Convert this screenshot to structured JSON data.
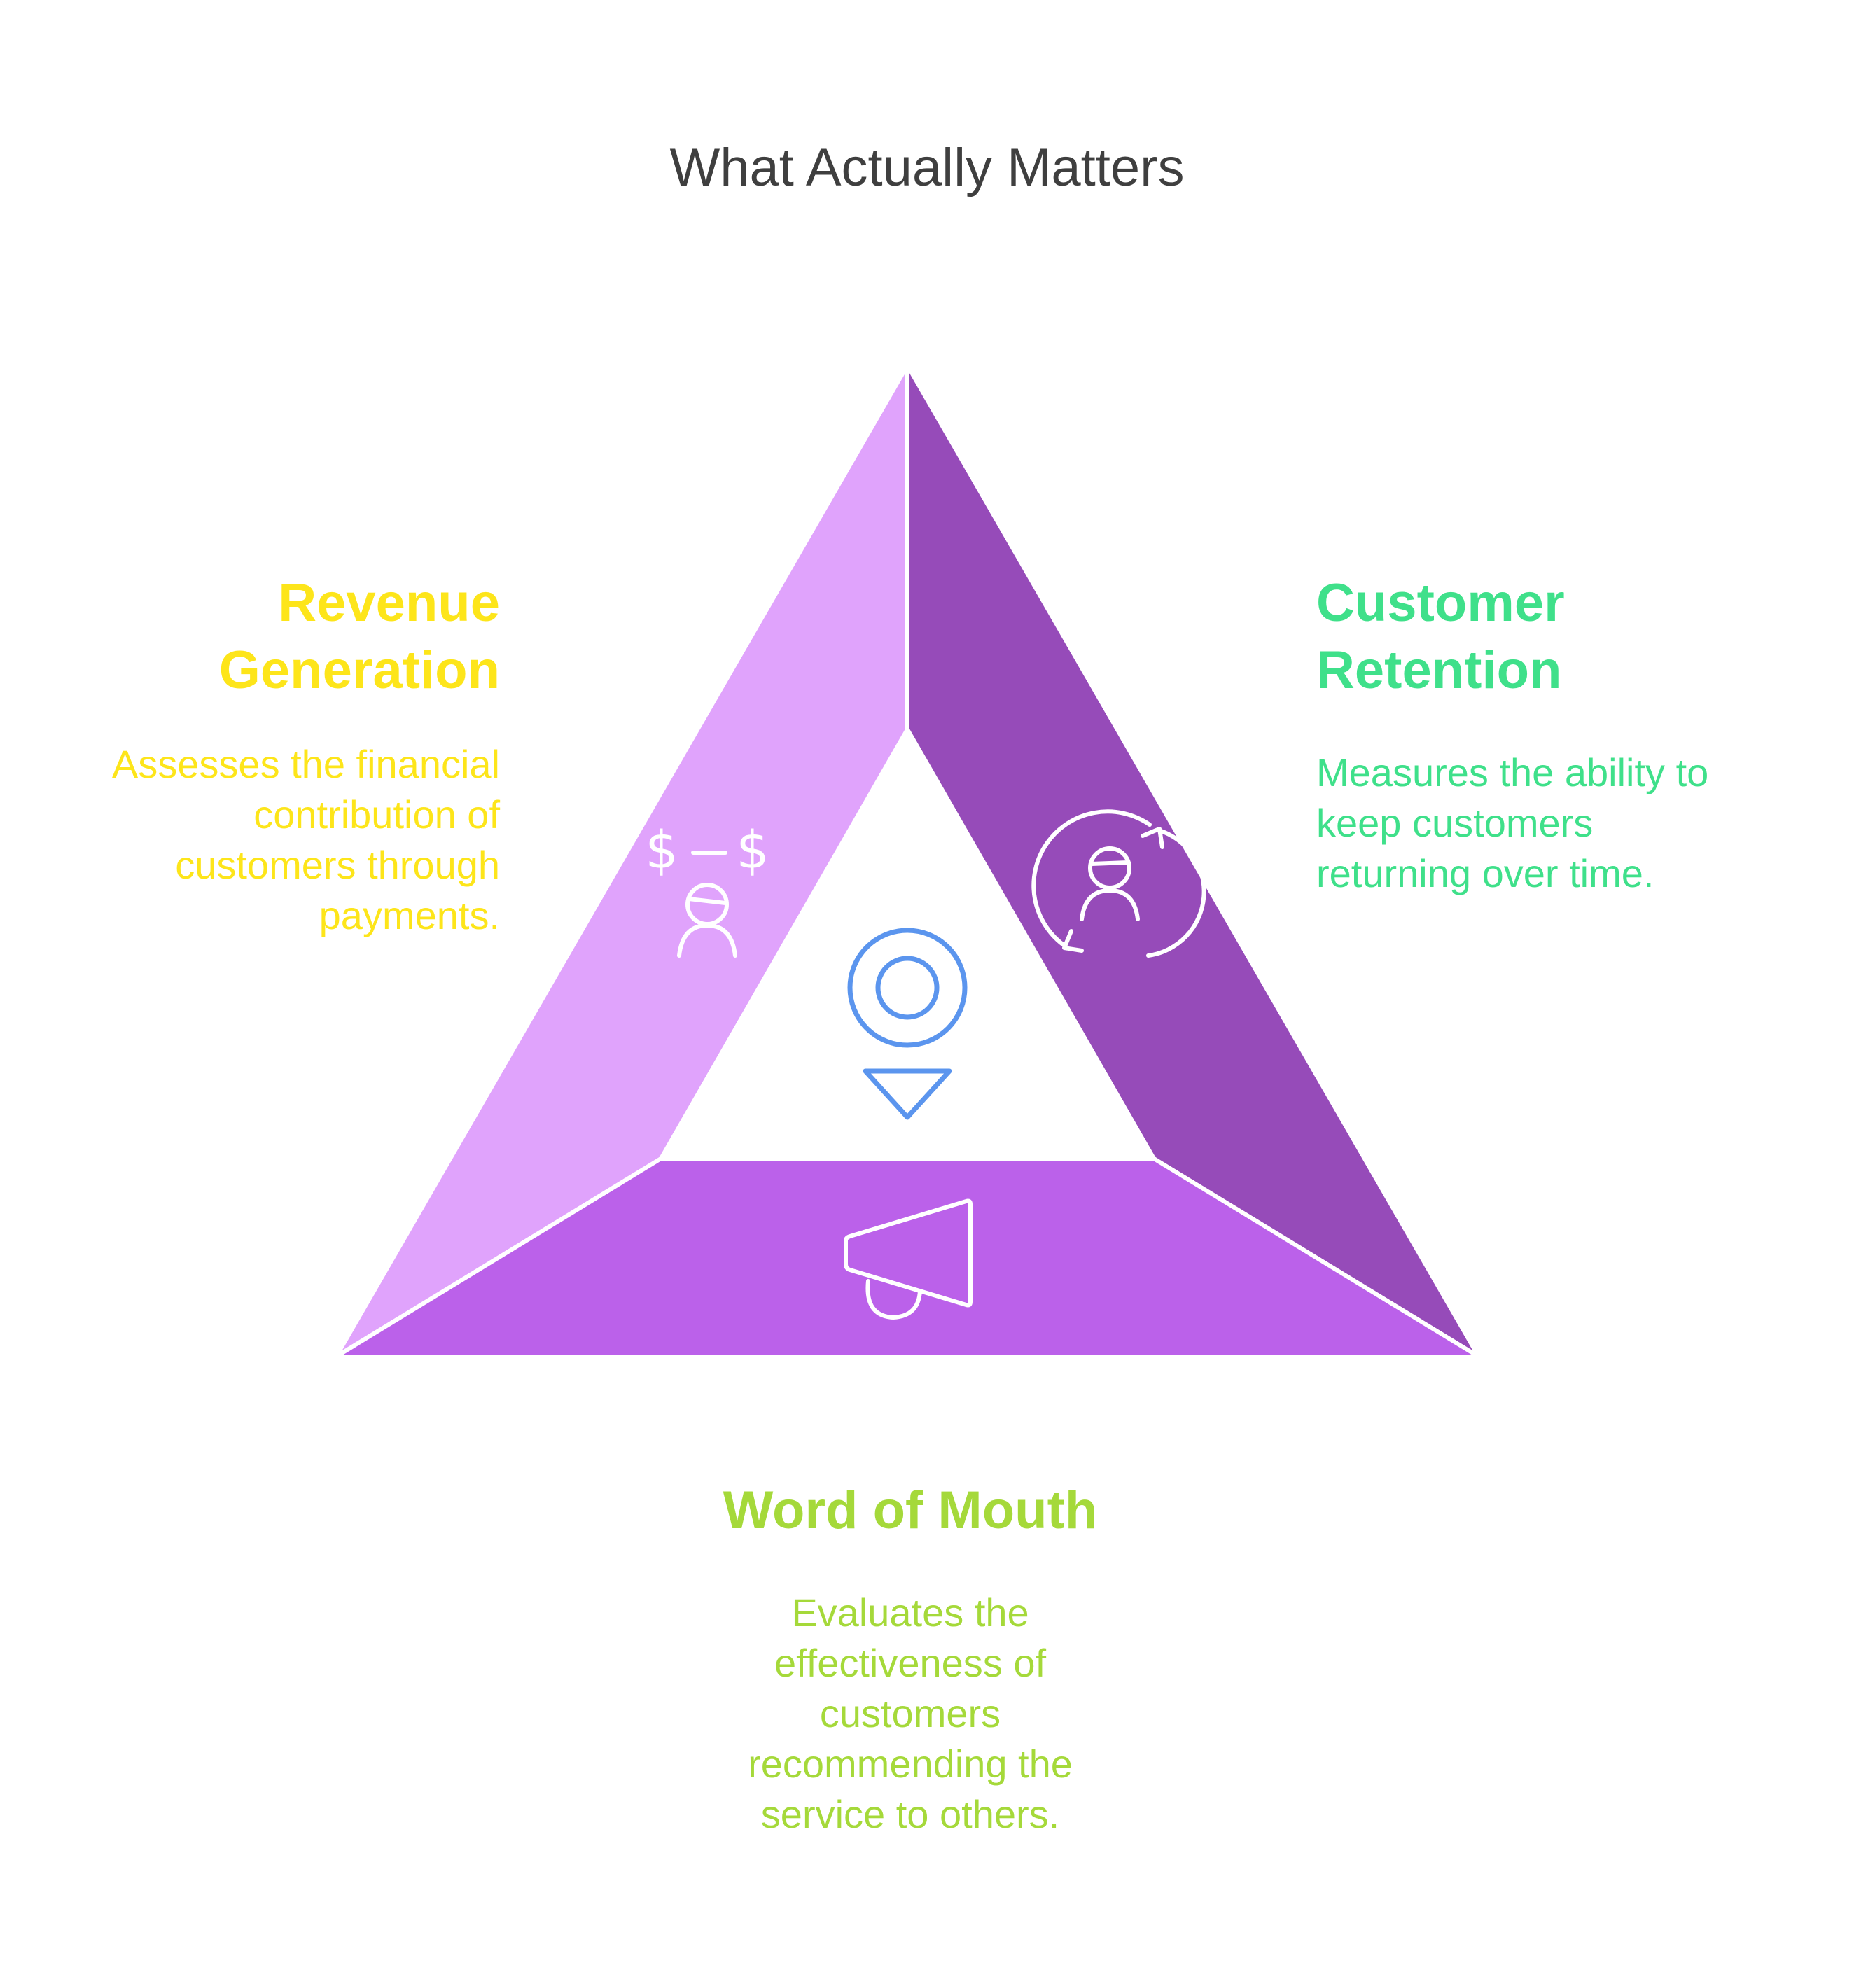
{
  "title": "What Actually Matters",
  "colors": {
    "left_segment": "#e0a3fc",
    "right_segment": "#964bb9",
    "bottom_segment": "#bb61ea",
    "center_icon": "#5b95ee",
    "revenue": "#fde51a",
    "retention": "#3fe08a",
    "word_of_mouth": "#a5d93a"
  },
  "sections": {
    "revenue": {
      "heading_line1": "Revenue",
      "heading_line2": "Generation",
      "desc_lines": [
        "Assesses the financial",
        "contribution of",
        "customers through",
        "payments."
      ],
      "icon": "customer-payment-icon"
    },
    "retention": {
      "heading_line1": "Customer",
      "heading_line2": "Retention",
      "desc_lines": [
        "Measures the ability to",
        "keep customers",
        "returning over time."
      ],
      "icon": "customer-cycle-icon"
    },
    "word_of_mouth": {
      "heading": "Word of Mouth",
      "desc_lines": [
        "Evaluates the",
        "effectiveness of",
        "customers",
        "recommending the",
        "service to others."
      ],
      "icon": "megaphone-icon"
    }
  },
  "center_icon": "location-pin-icon"
}
